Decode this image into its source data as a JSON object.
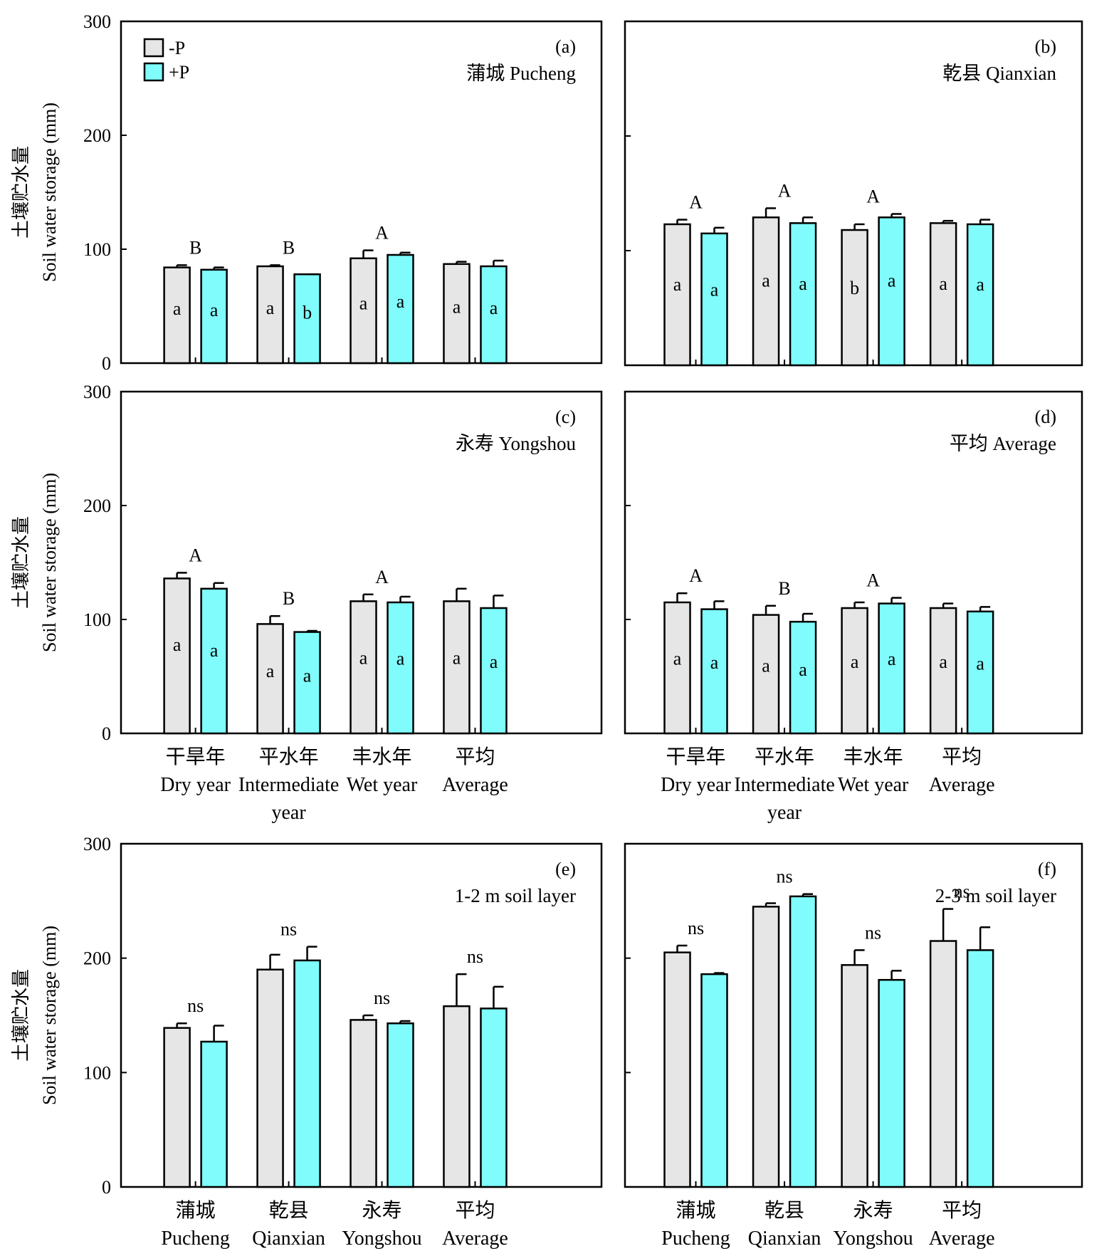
{
  "chart_data": [
    {
      "panel": "(a)",
      "title": "蒲城 Pucheng",
      "type": "bar",
      "ylabel_cn": "土壤贮水量",
      "ylabel_en": "Soil water storage (mm)",
      "ylim": [
        0,
        300
      ],
      "yticks": [
        "0",
        "100",
        "200",
        "300"
      ],
      "xlabels": [],
      "series": [
        {
          "name": "-P",
          "color": "#e6e6e6",
          "values": [
            84,
            85,
            92,
            87
          ],
          "errors": [
            2,
            1,
            7,
            2
          ],
          "letters": [
            "a",
            "a",
            "a",
            "a"
          ]
        },
        {
          "name": "+P",
          "color": "#7ffcfb",
          "values": [
            82,
            78,
            95,
            85
          ],
          "errors": [
            2,
            0,
            2,
            5
          ],
          "letters": [
            "a",
            "b",
            "a",
            "a"
          ]
        }
      ],
      "group_letters": [
        "B",
        "B",
        "A",
        ""
      ]
    },
    {
      "panel": "(b)",
      "title": "乾县 Qianxian",
      "type": "bar",
      "ylim": [
        0,
        300
      ],
      "xlabels": [],
      "series": [
        {
          "name": "-P",
          "color": "#e6e6e6",
          "values": [
            123,
            129,
            118,
            124
          ],
          "errors": [
            4,
            8,
            5,
            2
          ],
          "letters": [
            "a",
            "a",
            "b",
            "a"
          ]
        },
        {
          "name": "+P",
          "color": "#7ffcfb",
          "values": [
            115,
            124,
            129,
            123
          ],
          "errors": [
            5,
            5,
            3,
            4
          ],
          "letters": [
            "a",
            "a",
            "a",
            "a"
          ]
        }
      ],
      "group_letters": [
        "A",
        "A",
        "A",
        ""
      ]
    },
    {
      "panel": "(c)",
      "title": "永寿 Yongshou",
      "type": "bar",
      "ylabel_cn": "土壤贮水量",
      "ylabel_en": "Soil water storage (mm)",
      "ylim": [
        0,
        300
      ],
      "yticks": [
        "0",
        "100",
        "200",
        "300"
      ],
      "xlabels": [
        [
          "干旱年",
          "Dry year"
        ],
        [
          "平水年",
          "Intermediate",
          "year"
        ],
        [
          "丰水年",
          "Wet year"
        ],
        [
          "平均",
          "Average"
        ]
      ],
      "series": [
        {
          "name": "-P",
          "color": "#e6e6e6",
          "values": [
            136,
            96,
            116,
            116
          ],
          "errors": [
            5,
            7,
            6,
            11
          ],
          "letters": [
            "a",
            "a",
            "a",
            "a"
          ]
        },
        {
          "name": "+P",
          "color": "#7ffcfb",
          "values": [
            127,
            89,
            115,
            110
          ],
          "errors": [
            5,
            1,
            5,
            11
          ],
          "letters": [
            "a",
            "a",
            "a",
            "a"
          ]
        }
      ],
      "group_letters": [
        "A",
        "B",
        "A",
        ""
      ]
    },
    {
      "panel": "(d)",
      "title": "平均 Average",
      "type": "bar",
      "ylim": [
        0,
        300
      ],
      "xlabels": [
        [
          "干旱年",
          "Dry year"
        ],
        [
          "平水年",
          "Intermediate",
          "year"
        ],
        [
          "丰水年",
          "Wet year"
        ],
        [
          "平均",
          "Average"
        ]
      ],
      "series": [
        {
          "name": "-P",
          "color": "#e6e6e6",
          "values": [
            115,
            104,
            110,
            110
          ],
          "errors": [
            8,
            8,
            5,
            4
          ],
          "letters": [
            "a",
            "a",
            "a",
            "a"
          ]
        },
        {
          "name": "+P",
          "color": "#7ffcfb",
          "values": [
            109,
            98,
            114,
            107
          ],
          "errors": [
            7,
            7,
            5,
            4
          ],
          "letters": [
            "a",
            "a",
            "a",
            "a"
          ]
        }
      ],
      "group_letters": [
        "A",
        "B",
        "A",
        ""
      ]
    },
    {
      "panel": "(e)",
      "title": "1-2 m soil layer",
      "type": "bar",
      "ylabel_cn": "土壤贮水量",
      "ylabel_en": "Soil water storage (mm)",
      "ylim": [
        0,
        300
      ],
      "yticks": [
        "0",
        "100",
        "200",
        "300"
      ],
      "xlabels": [
        [
          "蒲城",
          "Pucheng"
        ],
        [
          "乾县",
          "Qianxian"
        ],
        [
          "永寿",
          "Yongshou"
        ],
        [
          "平均",
          "Average"
        ]
      ],
      "series": [
        {
          "name": "-P",
          "color": "#e6e6e6",
          "values": [
            139,
            190,
            146,
            158
          ],
          "errors": [
            4,
            13,
            4,
            28
          ],
          "letters": [
            "",
            "",
            "",
            ""
          ]
        },
        {
          "name": "+P",
          "color": "#7ffcfb",
          "values": [
            127,
            198,
            143,
            156
          ],
          "errors": [
            14,
            12,
            2,
            19
          ],
          "letters": [
            "",
            "",
            "",
            ""
          ]
        }
      ],
      "group_letters": [
        "ns",
        "ns",
        "ns",
        "ns"
      ]
    },
    {
      "panel": "(f)",
      "title": "2-3 m soil layer",
      "type": "bar",
      "ylim": [
        0,
        300
      ],
      "xlabels": [
        [
          "蒲城",
          "Pucheng"
        ],
        [
          "乾县",
          "Qianxian"
        ],
        [
          "永寿",
          "Yongshou"
        ],
        [
          "平均",
          "Average"
        ]
      ],
      "series": [
        {
          "name": "-P",
          "color": "#e6e6e6",
          "values": [
            205,
            245,
            194,
            215
          ],
          "errors": [
            6,
            3,
            13,
            28
          ],
          "letters": [
            "",
            "",
            "",
            ""
          ]
        },
        {
          "name": "+P",
          "color": "#7ffcfb",
          "values": [
            186,
            254,
            181,
            207
          ],
          "errors": [
            1,
            2,
            8,
            20
          ],
          "letters": [
            "",
            "",
            "",
            ""
          ]
        }
      ],
      "group_letters": [
        "ns",
        "ns",
        "ns",
        "ns"
      ]
    }
  ],
  "legend": [
    {
      "label": "-P",
      "color": "#e6e6e6"
    },
    {
      "label": "+P",
      "color": "#7ffcfb"
    }
  ]
}
